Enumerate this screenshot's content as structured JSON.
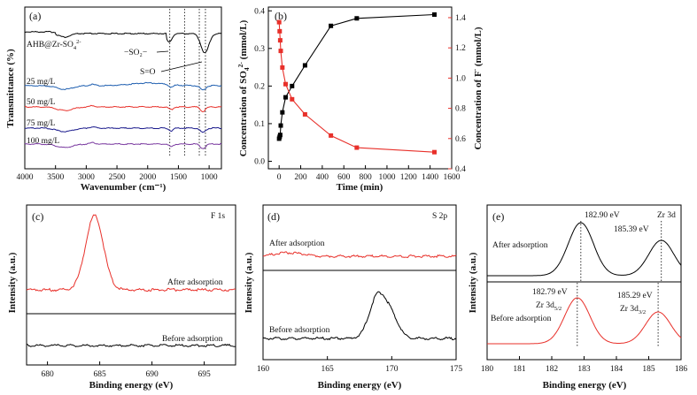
{
  "chart_data": [
    {
      "panel": "(a)",
      "type": "line",
      "xlabel": "Wavenumber (cm⁻¹)",
      "ylabel": "Transmittance (%)",
      "xticks": [
        "4000",
        "3500",
        "3000",
        "2500",
        "2000",
        "1500",
        "1000"
      ],
      "xlim": [
        4000,
        800
      ],
      "series_labels": [
        "AHB@Zr-SO₄²⁻",
        "25 mg/L",
        "50 mg/L",
        "75 mg/L",
        "100 mg/L"
      ],
      "series_colors": [
        "#000000",
        "#1f5fb0",
        "#e8302a",
        "#1a1a8c",
        "#7a3aa0"
      ],
      "annotations": [
        "−SO₂−",
        "S=O"
      ],
      "dotted_lines_x": [
        1640,
        1400,
        1160,
        1060
      ]
    },
    {
      "panel": "(b)",
      "type": "line",
      "xlabel": "Time (min)",
      "ylabel_left": "Concentration of SO₄²⁻ (mmol/L)",
      "ylabel_right": "Concentration of F⁻ (mmol/L)",
      "xticks": [
        "0",
        "200",
        "400",
        "600",
        "800",
        "1000",
        "1200",
        "1400",
        "1600"
      ],
      "yticks_left": [
        "0.0",
        "0.1",
        "0.2",
        "0.3",
        "0.4"
      ],
      "yticks_right": [
        "0.4",
        "0.6",
        "0.8",
        "1.0",
        "1.2",
        "1.4"
      ],
      "xlim": [
        -100,
        1600
      ],
      "ylim_left": [
        -0.02,
        0.41
      ],
      "ylim_right": [
        0.4,
        1.47
      ],
      "series": [
        {
          "color": "#000000",
          "axis": "left",
          "x": [
            0,
            5,
            10,
            15,
            30,
            60,
            120,
            240,
            480,
            720,
            1440
          ],
          "y": [
            0.06,
            0.065,
            0.07,
            0.095,
            0.13,
            0.17,
            0.2,
            0.255,
            0.36,
            0.38,
            0.39
          ]
        },
        {
          "color": "#e8302a",
          "axis": "right",
          "x": [
            0,
            5,
            10,
            15,
            30,
            60,
            120,
            240,
            480,
            720,
            1440
          ],
          "y": [
            1.37,
            1.31,
            1.25,
            1.18,
            1.07,
            0.96,
            0.86,
            0.76,
            0.62,
            0.54,
            0.51
          ]
        }
      ]
    },
    {
      "panel": "(c)",
      "type": "line",
      "title": "F 1s",
      "xlabel": "Binding energy (eV)",
      "ylabel": "Intensity (a.u.)",
      "xticks": [
        "680",
        "685",
        "690",
        "695"
      ],
      "xlim": [
        678,
        698
      ],
      "series_labels": [
        "After adsorption",
        "Before adsorption"
      ],
      "series_colors": [
        "#e8302a",
        "#000000"
      ]
    },
    {
      "panel": "(d)",
      "type": "line",
      "title": "S 2p",
      "xlabel": "Binding energy (eV)",
      "ylabel": "Intensity (a.u.)",
      "xticks": [
        "160",
        "165",
        "170",
        "175"
      ],
      "xlim": [
        160,
        175
      ],
      "series_labels": [
        "After adsorption",
        "Before adsorption"
      ],
      "series_colors": [
        "#e8302a",
        "#000000"
      ]
    },
    {
      "panel": "(e)",
      "type": "line",
      "title": "Zr 3d",
      "xlabel": "Binding energy (eV)",
      "ylabel": "Intensity (a.u.)",
      "xticks": [
        "180",
        "181",
        "182",
        "183",
        "184",
        "185",
        "186"
      ],
      "xlim": [
        180,
        186
      ],
      "series_labels": [
        "After adsorption",
        "Before adsorption"
      ],
      "series_colors": [
        "#000000",
        "#e8302a"
      ],
      "peaks_after": [
        "182.90 eV",
        "185.39 eV"
      ],
      "peaks_before": [
        "182.79 eV",
        "185.29 eV"
      ],
      "peak_names": [
        "Zr 3d₅/₂",
        "Zr 3d₃/₂"
      ]
    }
  ]
}
